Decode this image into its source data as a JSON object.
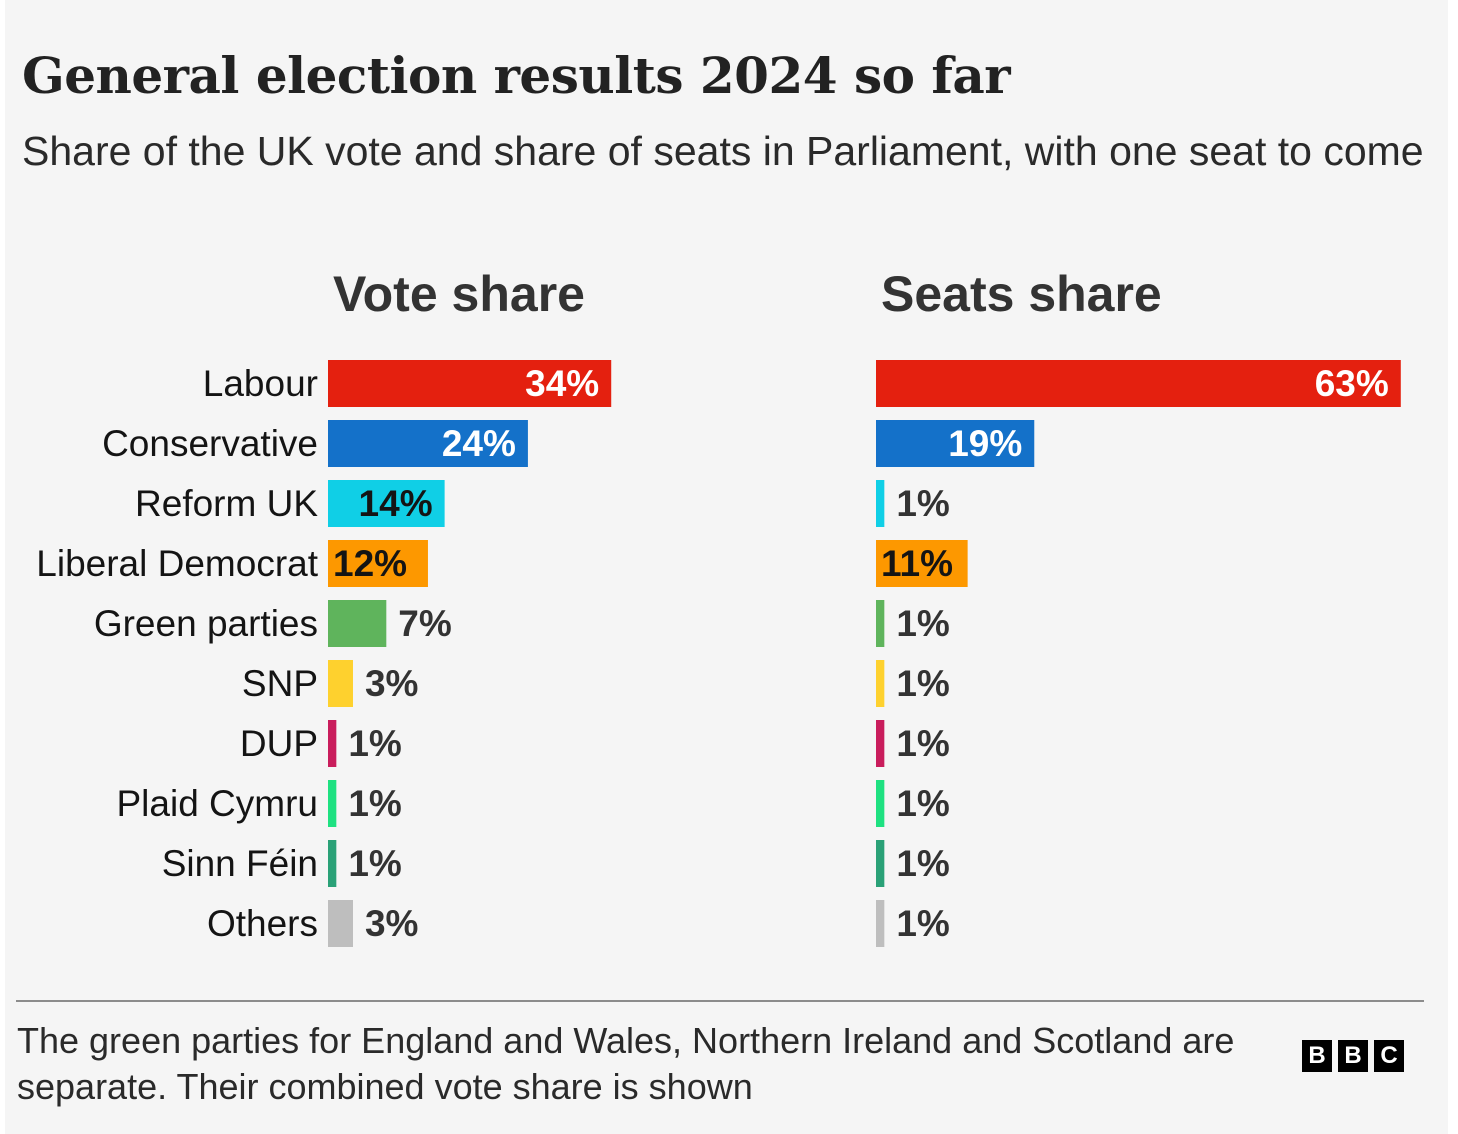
{
  "chart_data": {
    "type": "bar",
    "title": "General election results 2024 so far",
    "subtitle": "Share of the UK vote and share of seats in Parliament, with one seat to come",
    "categories": [
      "Labour",
      "Conservative",
      "Reform UK",
      "Liberal Democrat",
      "Green parties",
      "SNP",
      "DUP",
      "Plaid Cymru",
      "Sinn Féin",
      "Others"
    ],
    "colors": [
      "#e4200f",
      "#1471c9",
      "#10cfe6",
      "#fd9800",
      "#5fb45c",
      "#fed12e",
      "#c91d5c",
      "#1ee181",
      "#2aa177",
      "#bebebe"
    ],
    "orientation": "horizontal",
    "series": [
      {
        "name": "Vote share",
        "values": [
          34,
          24,
          14,
          12,
          7,
          3,
          1,
          1,
          1,
          3
        ],
        "labels": [
          "34%",
          "24%",
          "14%",
          "12%",
          "7%",
          "3%",
          "1%",
          "1%",
          "1%",
          "3%"
        ]
      },
      {
        "name": "Seats share",
        "values": [
          63,
          19,
          1,
          11,
          1,
          1,
          1,
          1,
          1,
          1
        ],
        "labels": [
          "63%",
          "19%",
          "1%",
          "11%",
          "1%",
          "1%",
          "1%",
          "1%",
          "1%",
          "1%"
        ]
      }
    ],
    "xlim": [
      0,
      63
    ],
    "grid": false
  },
  "footnote": "The green parties for England and Wales, Northern Ireland and Scotland are separate. Their combined vote share is shown",
  "logo": {
    "letters": [
      "B",
      "B",
      "C"
    ]
  }
}
